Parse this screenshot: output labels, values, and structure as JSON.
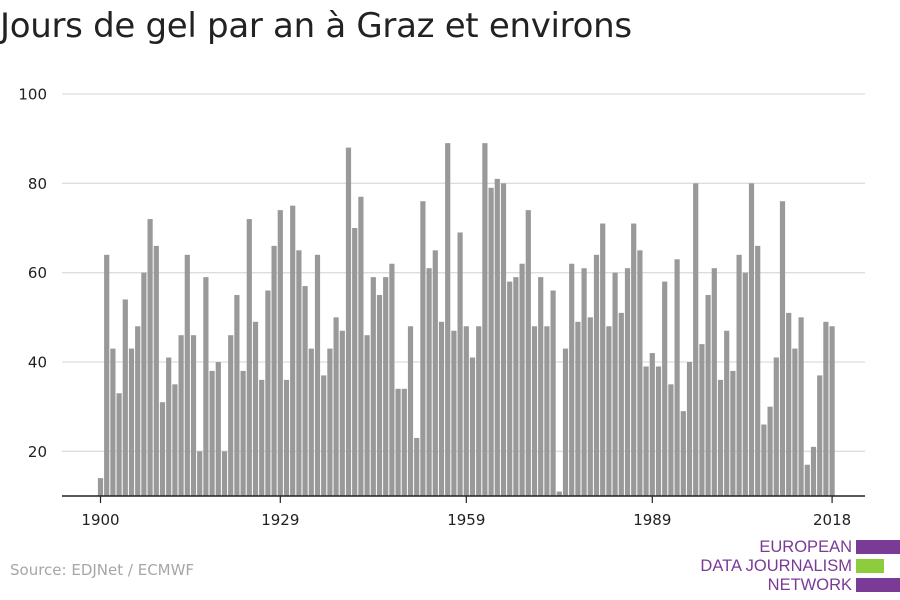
{
  "title": "Jours de gel par an à Graz et environs",
  "source": "Source: EDJNet / ECMWF",
  "logo": {
    "lines": [
      "EUROPEAN",
      "DATA JOURNALISM",
      "NETWORK"
    ],
    "color": "#7a3b96",
    "accent_color": "#8dcc3c"
  },
  "colors": {
    "bar": "#999999",
    "grid": "#dddddd",
    "axis": "#222222",
    "tick_label": "#222222"
  },
  "chart_data": {
    "type": "bar",
    "title": "Jours de gel par an à Graz et environs",
    "xlabel": "",
    "ylabel": "",
    "x_start": 1900,
    "x_end": 2018,
    "xticks": [
      1900,
      1929,
      1959,
      1989,
      2018
    ],
    "yticks": [
      20,
      40,
      60,
      80,
      100
    ],
    "ylim": [
      10,
      100
    ],
    "grid": true,
    "values": [
      14,
      64,
      43,
      33,
      54,
      43,
      48,
      60,
      72,
      66,
      31,
      41,
      35,
      46,
      64,
      46,
      20,
      59,
      38,
      40,
      20,
      46,
      55,
      38,
      72,
      49,
      36,
      56,
      66,
      74,
      36,
      75,
      65,
      57,
      43,
      64,
      37,
      43,
      50,
      47,
      88,
      70,
      77,
      46,
      59,
      55,
      59,
      62,
      34,
      34,
      48,
      23,
      76,
      61,
      65,
      49,
      89,
      47,
      69,
      48,
      41,
      48,
      89,
      79,
      81,
      80,
      58,
      59,
      62,
      74,
      48,
      59,
      48,
      56,
      11,
      43,
      62,
      49,
      61,
      50,
      64,
      71,
      48,
      60,
      51,
      61,
      71,
      65,
      39,
      42,
      39,
      58,
      35,
      63,
      29,
      40,
      80,
      44,
      55,
      61,
      36,
      47,
      38,
      64,
      60,
      80,
      66,
      26,
      30,
      41,
      76,
      51,
      43,
      50,
      17,
      21,
      37,
      49,
      48
    ]
  }
}
